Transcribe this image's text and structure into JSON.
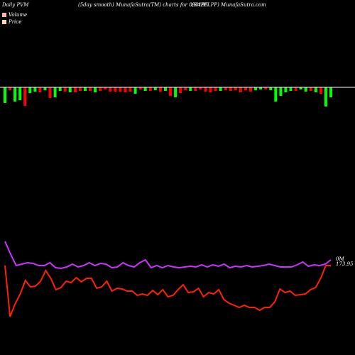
{
  "header": {
    "left": "Daily PVM",
    "center": "(5day smooth) MunafaSutra(TM) charts for 890195",
    "right": "(SAPPLPP) MunafaSutra.com"
  },
  "legend": {
    "volume_label": "Volume",
    "price_label": "Price",
    "volume_color": "#ffb3b3",
    "price_color": "#ffd9b3"
  },
  "end_labels": {
    "volume_text": "0M",
    "price_text": "173.95"
  },
  "colors": {
    "background": "#000000",
    "up_bar": "#00ff00",
    "down_bar": "#ff0000",
    "axis_line": "#ffffff",
    "price_line": "#ff2200",
    "volume_line": "#cc33ff"
  },
  "chart_data": {
    "type": "bar+line",
    "volume_bars": [
      {
        "dir": "up",
        "v": 22
      },
      {
        "dir": "down",
        "v": 4
      },
      {
        "dir": "up",
        "v": 20
      },
      {
        "dir": "up",
        "v": 18
      },
      {
        "dir": "down",
        "v": 26
      },
      {
        "dir": "up",
        "v": 8
      },
      {
        "dir": "up",
        "v": 6
      },
      {
        "dir": "down",
        "v": 7
      },
      {
        "dir": "up",
        "v": 4
      },
      {
        "dir": "down",
        "v": 15
      },
      {
        "dir": "up",
        "v": 14
      },
      {
        "dir": "up",
        "v": 5
      },
      {
        "dir": "down",
        "v": 6
      },
      {
        "dir": "up",
        "v": 7
      },
      {
        "dir": "down",
        "v": 7
      },
      {
        "dir": "down",
        "v": 5
      },
      {
        "dir": "up",
        "v": 5
      },
      {
        "dir": "down",
        "v": 5
      },
      {
        "dir": "up",
        "v": 7
      },
      {
        "dir": "down",
        "v": 5
      },
      {
        "dir": "down",
        "v": 3
      },
      {
        "dir": "down",
        "v": 6
      },
      {
        "dir": "down",
        "v": 6
      },
      {
        "dir": "down",
        "v": 6
      },
      {
        "dir": "down",
        "v": 7
      },
      {
        "dir": "down",
        "v": 6
      },
      {
        "dir": "up",
        "v": 9
      },
      {
        "dir": "down",
        "v": 3
      },
      {
        "dir": "up",
        "v": 5
      },
      {
        "dir": "down",
        "v": 5
      },
      {
        "dir": "up",
        "v": 4
      },
      {
        "dir": "down",
        "v": 6
      },
      {
        "dir": "up",
        "v": 5
      },
      {
        "dir": "down",
        "v": 12
      },
      {
        "dir": "up",
        "v": 14
      },
      {
        "dir": "down",
        "v": 8
      },
      {
        "dir": "down",
        "v": 4
      },
      {
        "dir": "up",
        "v": 5
      },
      {
        "dir": "down",
        "v": 5
      },
      {
        "dir": "down",
        "v": 3
      },
      {
        "dir": "down",
        "v": 6
      },
      {
        "dir": "down",
        "v": 7
      },
      {
        "dir": "down",
        "v": 5
      },
      {
        "dir": "up",
        "v": 5
      },
      {
        "dir": "down",
        "v": 4
      },
      {
        "dir": "down",
        "v": 5
      },
      {
        "dir": "down",
        "v": 4
      },
      {
        "dir": "down",
        "v": 7
      },
      {
        "dir": "down",
        "v": 4
      },
      {
        "dir": "down",
        "v": 6
      },
      {
        "dir": "up",
        "v": 4
      },
      {
        "dir": "up",
        "v": 3
      },
      {
        "dir": "down",
        "v": 3
      },
      {
        "dir": "up",
        "v": 4
      },
      {
        "dir": "up",
        "v": 20
      },
      {
        "dir": "up",
        "v": 12
      },
      {
        "dir": "up",
        "v": 7
      },
      {
        "dir": "up",
        "v": 5
      },
      {
        "dir": "down",
        "v": 5
      },
      {
        "dir": "up",
        "v": 3
      },
      {
        "dir": "up",
        "v": 6
      },
      {
        "dir": "down",
        "v": 5
      },
      {
        "dir": "up",
        "v": 7
      },
      {
        "dir": "down",
        "v": 9
      },
      {
        "dir": "up",
        "v": 27
      },
      {
        "dir": "up",
        "v": 14
      }
    ],
    "volume_line": [
      340,
      358,
      374,
      372,
      370,
      371,
      374,
      374,
      370,
      377,
      378,
      376,
      372,
      376,
      374,
      370,
      374,
      371,
      372,
      377,
      376,
      370,
      374,
      376,
      370,
      366,
      377,
      374,
      377,
      374,
      376,
      377,
      376,
      375,
      376,
      373,
      376,
      373,
      375,
      372,
      377,
      375,
      376,
      374,
      376,
      375,
      374,
      372,
      374,
      376,
      376,
      376,
      373,
      369,
      375,
      373,
      374,
      372,
      366
    ],
    "price_line": [
      374,
      446,
      428,
      414,
      395,
      404,
      403,
      396,
      381,
      392,
      408,
      405,
      396,
      398,
      391,
      397,
      392,
      392,
      406,
      404,
      396,
      410,
      406,
      407,
      410,
      410,
      416,
      414,
      416,
      409,
      415,
      408,
      418,
      416,
      408,
      401,
      412,
      411,
      406,
      418,
      412,
      414,
      408,
      422,
      427,
      430,
      433,
      430,
      433,
      433,
      437,
      433,
      433,
      425,
      407,
      412,
      410,
      416,
      415,
      414,
      408,
      405,
      392,
      374,
      374
    ]
  }
}
